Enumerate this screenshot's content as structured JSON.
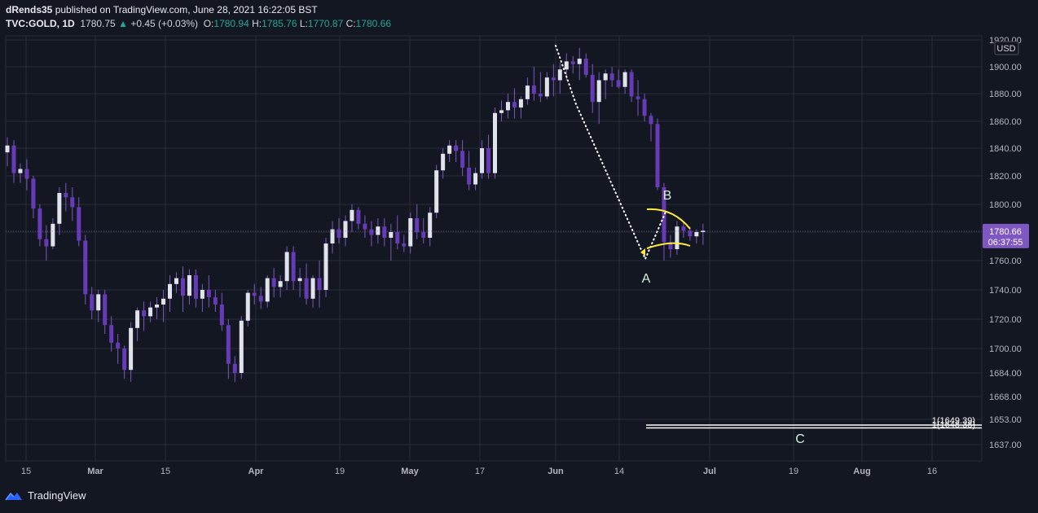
{
  "header": {
    "author": "dRends35",
    "published_text": "published on TradingView.com, June 28, 2021 16:22:05 BST",
    "symbol": "TVC:GOLD, 1D",
    "last": "1780.75",
    "arrow": "▲",
    "change": "+0.45 (+0.03%)",
    "o_label": "O:",
    "o_value": "1780.94",
    "h_label": "H:",
    "h_value": "1785.76",
    "l_label": "L:",
    "l_value": "1770.87",
    "c_label": "C:",
    "c_value": "1780.66"
  },
  "footer": {
    "brand": "TradingView",
    "logo_icon": "tradingview-logo-icon"
  },
  "colors": {
    "background": "#131722",
    "grid": "#2a2e39",
    "up_body": "#e0e3eb",
    "down_body": "#673ab7",
    "wick": "#7e57c2",
    "price_tag": "#7e57c2",
    "arc": "#ffeb3b",
    "annotation": "#d1f2d8"
  },
  "chart_data": {
    "type": "candlestick",
    "currency": "USD",
    "y_axis_labels": [
      "1637.00",
      "1653.00",
      "1668.00",
      "1684.00",
      "1700.00",
      "1720.00",
      "1740.00",
      "1760.00",
      "1780.00",
      "1800.00",
      "1820.00",
      "1840.00",
      "1860.00",
      "1880.00",
      "1900.00",
      "1920.00"
    ],
    "x_axis_labels": [
      "15",
      "Mar",
      "15",
      "Apr",
      "19",
      "May",
      "17",
      "Jun",
      "14",
      "Jul",
      "19",
      "Aug",
      "16"
    ],
    "last_price_tag": "1780.66",
    "countdown_tag": "06:37:55",
    "annotations": {
      "a": "A",
      "b": "B",
      "c": "C",
      "fib_1": "1(1649.39)",
      "fib_2": "1(1648.38)"
    },
    "candles": [
      [
        1837,
        1848,
        1827,
        1842
      ],
      [
        1842,
        1846,
        1815,
        1822
      ],
      [
        1822,
        1829,
        1815,
        1825
      ],
      [
        1825,
        1832,
        1810,
        1818
      ],
      [
        1818,
        1820,
        1790,
        1797
      ],
      [
        1797,
        1800,
        1770,
        1775
      ],
      [
        1775,
        1785,
        1760,
        1770
      ],
      [
        1770,
        1790,
        1768,
        1786
      ],
      [
        1786,
        1812,
        1778,
        1808
      ],
      [
        1808,
        1815,
        1795,
        1805
      ],
      [
        1805,
        1812,
        1788,
        1798
      ],
      [
        1798,
        1805,
        1770,
        1774
      ],
      [
        1774,
        1778,
        1730,
        1737
      ],
      [
        1737,
        1742,
        1720,
        1726
      ],
      [
        1726,
        1740,
        1718,
        1737
      ],
      [
        1737,
        1740,
        1710,
        1716
      ],
      [
        1716,
        1722,
        1698,
        1704
      ],
      [
        1704,
        1710,
        1690,
        1700
      ],
      [
        1700,
        1702,
        1680,
        1686
      ],
      [
        1686,
        1718,
        1678,
        1714
      ],
      [
        1714,
        1728,
        1705,
        1726
      ],
      [
        1726,
        1732,
        1712,
        1722
      ],
      [
        1722,
        1732,
        1718,
        1728
      ],
      [
        1728,
        1735,
        1720,
        1730
      ],
      [
        1730,
        1740,
        1718,
        1734
      ],
      [
        1734,
        1750,
        1725,
        1744
      ],
      [
        1744,
        1752,
        1738,
        1748
      ],
      [
        1748,
        1756,
        1725,
        1736
      ],
      [
        1736,
        1754,
        1730,
        1750
      ],
      [
        1750,
        1754,
        1728,
        1734
      ],
      [
        1734,
        1744,
        1725,
        1740
      ],
      [
        1740,
        1750,
        1728,
        1735
      ],
      [
        1735,
        1740,
        1725,
        1730
      ],
      [
        1730,
        1738,
        1712,
        1716
      ],
      [
        1716,
        1720,
        1680,
        1690
      ],
      [
        1690,
        1695,
        1678,
        1684
      ],
      [
        1684,
        1722,
        1680,
        1719
      ],
      [
        1719,
        1740,
        1715,
        1738
      ],
      [
        1738,
        1744,
        1730,
        1736
      ],
      [
        1736,
        1742,
        1727,
        1732
      ],
      [
        1732,
        1750,
        1728,
        1748
      ],
      [
        1748,
        1755,
        1735,
        1742
      ],
      [
        1742,
        1750,
        1735,
        1746
      ],
      [
        1746,
        1770,
        1740,
        1766
      ],
      [
        1766,
        1770,
        1740,
        1746
      ],
      [
        1746,
        1755,
        1735,
        1748
      ],
      [
        1748,
        1758,
        1730,
        1734
      ],
      [
        1734,
        1750,
        1728,
        1748
      ],
      [
        1748,
        1760,
        1728,
        1740
      ],
      [
        1740,
        1776,
        1735,
        1772
      ],
      [
        1772,
        1788,
        1765,
        1782
      ],
      [
        1782,
        1790,
        1772,
        1776
      ],
      [
        1776,
        1792,
        1770,
        1788
      ],
      [
        1788,
        1800,
        1780,
        1796
      ],
      [
        1796,
        1798,
        1782,
        1786
      ],
      [
        1786,
        1792,
        1776,
        1782
      ],
      [
        1782,
        1788,
        1770,
        1778
      ],
      [
        1778,
        1790,
        1772,
        1784
      ],
      [
        1784,
        1790,
        1770,
        1776
      ],
      [
        1776,
        1786,
        1760,
        1780
      ],
      [
        1780,
        1792,
        1768,
        1772
      ],
      [
        1772,
        1778,
        1766,
        1770
      ],
      [
        1770,
        1794,
        1765,
        1790
      ],
      [
        1790,
        1800,
        1775,
        1780
      ],
      [
        1780,
        1790,
        1772,
        1776
      ],
      [
        1776,
        1798,
        1770,
        1794
      ],
      [
        1794,
        1828,
        1790,
        1824
      ],
      [
        1824,
        1840,
        1818,
        1836
      ],
      [
        1836,
        1846,
        1830,
        1842
      ],
      [
        1842,
        1846,
        1830,
        1838
      ],
      [
        1838,
        1846,
        1820,
        1826
      ],
      [
        1826,
        1838,
        1810,
        1814
      ],
      [
        1814,
        1826,
        1810,
        1822
      ],
      [
        1822,
        1846,
        1818,
        1840
      ],
      [
        1840,
        1850,
        1818,
        1822
      ],
      [
        1822,
        1870,
        1818,
        1866
      ],
      [
        1866,
        1875,
        1860,
        1868
      ],
      [
        1868,
        1880,
        1862,
        1874
      ],
      [
        1874,
        1884,
        1862,
        1870
      ],
      [
        1870,
        1878,
        1862,
        1876
      ],
      [
        1876,
        1892,
        1872,
        1886
      ],
      [
        1886,
        1900,
        1875,
        1880
      ],
      [
        1880,
        1896,
        1874,
        1878
      ],
      [
        1878,
        1896,
        1876,
        1892
      ],
      [
        1892,
        1902,
        1878,
        1890
      ],
      [
        1890,
        1903,
        1880,
        1898
      ],
      [
        1898,
        1910,
        1890,
        1904
      ],
      [
        1904,
        1908,
        1895,
        1902
      ],
      [
        1902,
        1914,
        1890,
        1906
      ],
      [
        1906,
        1910,
        1892,
        1894
      ],
      [
        1894,
        1902,
        1866,
        1874
      ],
      [
        1874,
        1896,
        1858,
        1890
      ],
      [
        1890,
        1898,
        1876,
        1895
      ],
      [
        1895,
        1900,
        1885,
        1890
      ],
      [
        1890,
        1898,
        1884,
        1885
      ],
      [
        1885,
        1898,
        1880,
        1896
      ],
      [
        1896,
        1898,
        1874,
        1878
      ],
      [
        1878,
        1890,
        1864,
        1876
      ],
      [
        1876,
        1880,
        1860,
        1864
      ],
      [
        1864,
        1866,
        1845,
        1858
      ],
      [
        1858,
        1862,
        1810,
        1812
      ],
      [
        1812,
        1815,
        1760,
        1773
      ],
      [
        1773,
        1778,
        1762,
        1768
      ],
      [
        1768,
        1788,
        1764,
        1784
      ],
      [
        1784,
        1788,
        1776,
        1781
      ],
      [
        1781,
        1784,
        1774,
        1777
      ],
      [
        1777,
        1782,
        1772,
        1780
      ],
      [
        1780,
        1786,
        1771,
        1781
      ]
    ]
  }
}
